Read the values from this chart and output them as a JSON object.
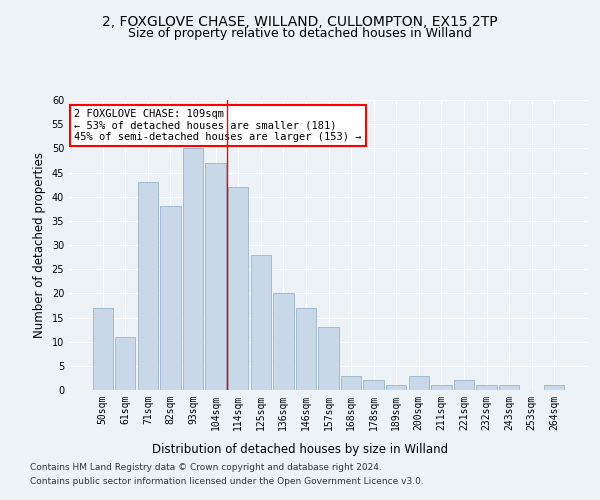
{
  "title_line1": "2, FOXGLOVE CHASE, WILLAND, CULLOMPTON, EX15 2TP",
  "title_line2": "Size of property relative to detached houses in Willand",
  "xlabel": "Distribution of detached houses by size in Willand",
  "ylabel": "Number of detached properties",
  "categories": [
    "50sqm",
    "61sqm",
    "71sqm",
    "82sqm",
    "93sqm",
    "104sqm",
    "114sqm",
    "125sqm",
    "136sqm",
    "146sqm",
    "157sqm",
    "168sqm",
    "178sqm",
    "189sqm",
    "200sqm",
    "211sqm",
    "221sqm",
    "232sqm",
    "243sqm",
    "253sqm",
    "264sqm"
  ],
  "values": [
    17,
    11,
    43,
    38,
    50,
    47,
    42,
    28,
    20,
    17,
    13,
    3,
    2,
    1,
    3,
    1,
    2,
    1,
    1,
    0,
    1
  ],
  "bar_color": "#c8d8e8",
  "bar_edge_color": "#9ab5cc",
  "marker_bin_index": 5,
  "marker_color": "red",
  "annotation_text": "2 FOXGLOVE CHASE: 109sqm\n← 53% of detached houses are smaller (181)\n45% of semi-detached houses are larger (153) →",
  "annotation_box_color": "white",
  "annotation_box_edge_color": "red",
  "ylim": [
    0,
    60
  ],
  "yticks": [
    0,
    5,
    10,
    15,
    20,
    25,
    30,
    35,
    40,
    45,
    50,
    55,
    60
  ],
  "footer_line1": "Contains HM Land Registry data © Crown copyright and database right 2024.",
  "footer_line2": "Contains public sector information licensed under the Open Government Licence v3.0.",
  "background_color": "#edf2f7",
  "grid_color": "#ffffff",
  "title_fontsize": 10,
  "subtitle_fontsize": 9,
  "axis_label_fontsize": 8.5,
  "tick_fontsize": 7,
  "footer_fontsize": 6.5,
  "annot_fontsize": 7.5
}
